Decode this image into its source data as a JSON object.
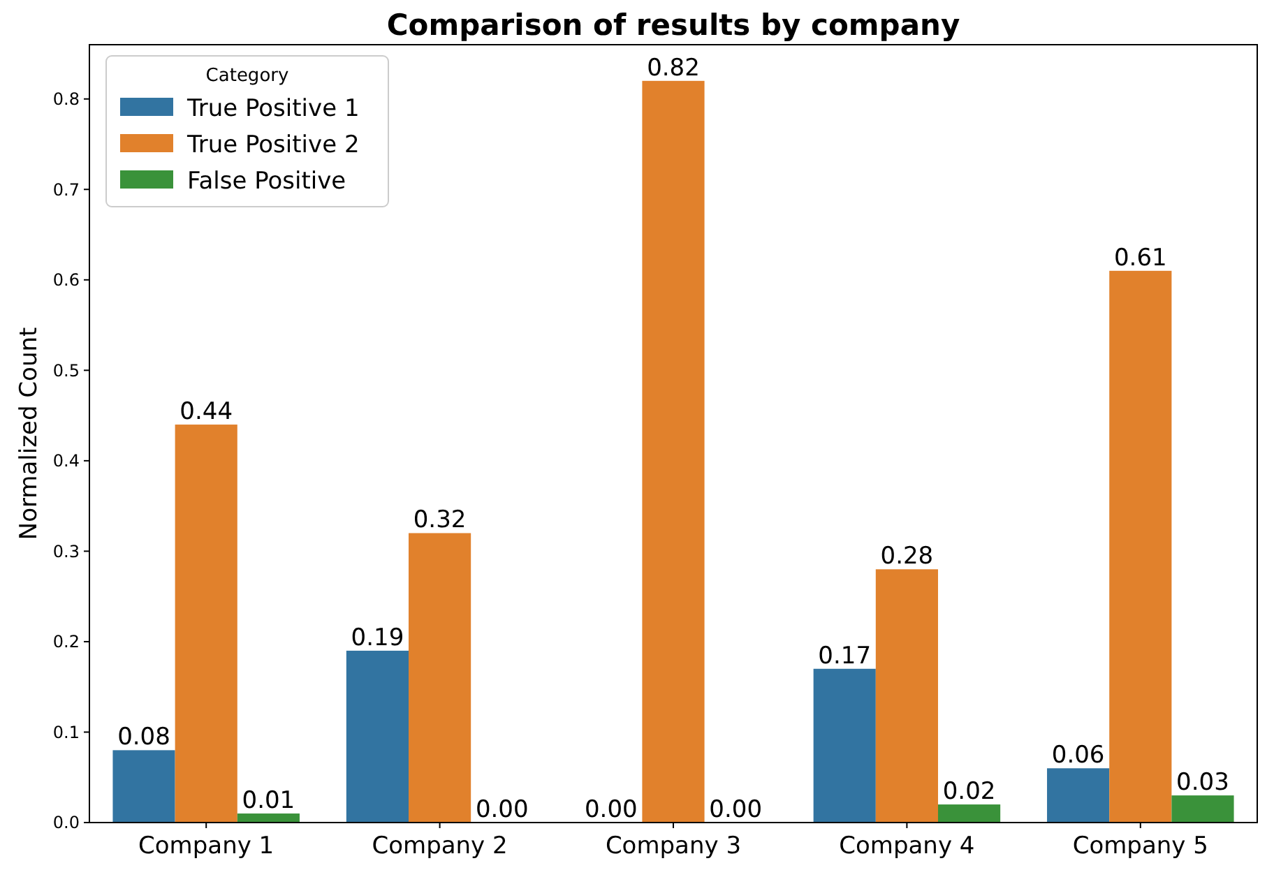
{
  "chart_data": {
    "type": "bar",
    "title": "Comparison of results by company",
    "ylabel": "Normalized Count",
    "legend_title": "Category",
    "legend": "top left",
    "grid": false,
    "categories": [
      "Company 1",
      "Company 2",
      "Company 3",
      "Company 4",
      "Company 5"
    ],
    "ylim": [
      0,
      0.86
    ],
    "yticks": [
      {
        "value": 0,
        "label": "0.0"
      },
      {
        "value": 0.1,
        "label": "0.1"
      },
      {
        "value": 0.2,
        "label": "0.2"
      },
      {
        "value": 0.3,
        "label": "0.3"
      },
      {
        "value": 0.4,
        "label": "0.4"
      },
      {
        "value": 0.5,
        "label": "0.5"
      },
      {
        "value": 0.6,
        "label": "0.6"
      },
      {
        "value": 0.7,
        "label": "0.7"
      },
      {
        "value": 0.8,
        "label": "0.8"
      }
    ],
    "series": [
      {
        "name": "True Positive 1",
        "color": "#3274a1",
        "values": [
          0.08,
          0.19,
          0,
          0.17,
          0.06
        ],
        "value_labels": [
          "0.08",
          "0.19",
          "0.00",
          "0.17",
          "0.06"
        ]
      },
      {
        "name": "True Positive 2",
        "color": "#e1812c",
        "values": [
          0.44,
          0.32,
          0.82,
          0.28,
          0.61
        ],
        "value_labels": [
          "0.44",
          "0.32",
          "0.82",
          "0.28",
          "0.61"
        ]
      },
      {
        "name": "False Positive",
        "color": "#3a923a",
        "values": [
          0.01,
          0,
          0,
          0.02,
          0.03
        ],
        "value_labels": [
          "0.01",
          "0.00",
          "0.00",
          "0.02",
          "0.03"
        ]
      }
    ]
  }
}
